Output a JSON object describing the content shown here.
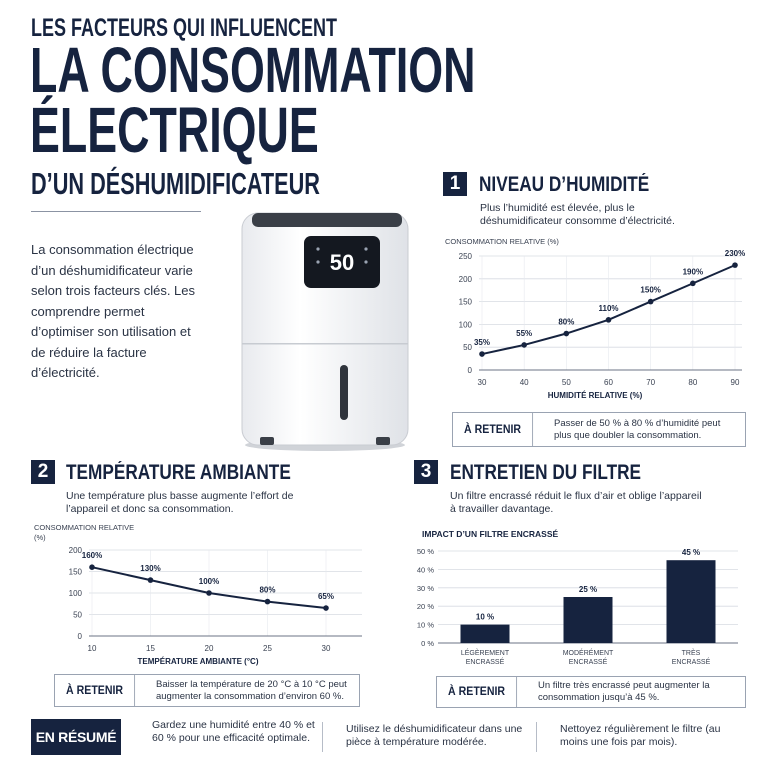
{
  "header": {
    "kicker": "LES FACTEURS QUI INFLUENCENT",
    "title_line1": "LA CONSOMMATION",
    "title_line2": "ÉLECTRIQUE",
    "subtitle": "D’UN DÉSHUMIDIFICATEUR"
  },
  "intro": "La consommation électrique d’un déshumidificateur varie selon trois facteurs clés. Les comprendre permet d’optimiser son utilisation et de réduire la facture d’électricité.",
  "device": {
    "display": "50"
  },
  "colors": {
    "navy": "#16233f",
    "line": "#1c2536",
    "grid": "#d7dbe2"
  },
  "section1": {
    "number": "1",
    "title": "NIVEAU D’HUMIDITÉ",
    "description": "Plus l’humidité est élevée, plus le déshumidificateur consomme d’électricité.",
    "retenir_label": "À RETENIR",
    "retenir_text": "Passer de 50 % à 80 % d’humidité peut plus que doubler la consommation."
  },
  "section2": {
    "number": "2",
    "title": "TEMPÉRATURE AMBIANTE",
    "description": "Une température plus basse augmente l’effort de l’appareil et donc sa consommation.",
    "retenir_label": "À RETENIR",
    "retenir_text": "Baisser la température de 20 °C à 10 °C peut augmenter la consommation d’environ 60 %."
  },
  "section3": {
    "number": "3",
    "title": "ENTRETIEN DU FILTRE",
    "description": "Un filtre encrassé réduit le flux d’air et oblige l’appareil à travailler davantage.",
    "retenir_label": "À RETENIR",
    "retenir_text": "Un filtre très encrassé peut augmenter la consommation jusqu’à 45 %."
  },
  "resume": {
    "label": "EN RÉSUMÉ",
    "items": [
      "Gardez une humidité entre 40 % et 60 % pour une efficacité optimale.",
      "Utilisez le déshumidificateur dans une pièce à température modérée.",
      "Nettoyez régulièrement le filtre (au moins une fois par mois)."
    ]
  },
  "chart_data": [
    {
      "type": "line",
      "ylabel": "CONSOMMATION RELATIVE (%)",
      "xlabel": "HUMIDITÉ RELATIVE (%)",
      "x": [
        30,
        40,
        50,
        60,
        70,
        80,
        90
      ],
      "y": [
        35,
        55,
        80,
        110,
        150,
        190,
        230
      ],
      "point_labels": [
        "35%",
        "55%",
        "80%",
        "110%",
        "150%",
        "190%",
        "230%"
      ],
      "xlim": [
        30,
        90
      ],
      "ylim": [
        0,
        250
      ],
      "yticks": [
        0,
        50,
        100,
        150,
        200,
        250
      ],
      "grid": true
    },
    {
      "type": "line",
      "ylabel": "CONSOMMATION RELATIVE (%)",
      "xlabel": "TEMPÉRATURE AMBIANTE (°C)",
      "x": [
        10,
        15,
        20,
        25,
        30
      ],
      "y": [
        160,
        130,
        100,
        80,
        65
      ],
      "point_labels": [
        "160%",
        "130%",
        "100%",
        "80%",
        "65%"
      ],
      "xlim": [
        10,
        30
      ],
      "ylim": [
        0,
        200
      ],
      "yticks": [
        0,
        50,
        100,
        150,
        200
      ],
      "grid": true
    },
    {
      "type": "bar",
      "title": "IMPACT D’UN FILTRE ENCRASSÉ",
      "categories": [
        "LÉGÈREMENT ENCRASSÉ",
        "MODÉRÉMENT ENCRASSÉ",
        "TRÈS ENCRASSÉ"
      ],
      "values": [
        10,
        25,
        45
      ],
      "value_labels": [
        "10 %",
        "25 %",
        "45 %"
      ],
      "ylim": [
        0,
        50
      ],
      "yticks": [
        0,
        10,
        20,
        30,
        40,
        50
      ],
      "ytick_labels": [
        "0 %",
        "10 %",
        "20 %",
        "30 %",
        "40 %",
        "50 %"
      ],
      "grid": true
    }
  ]
}
